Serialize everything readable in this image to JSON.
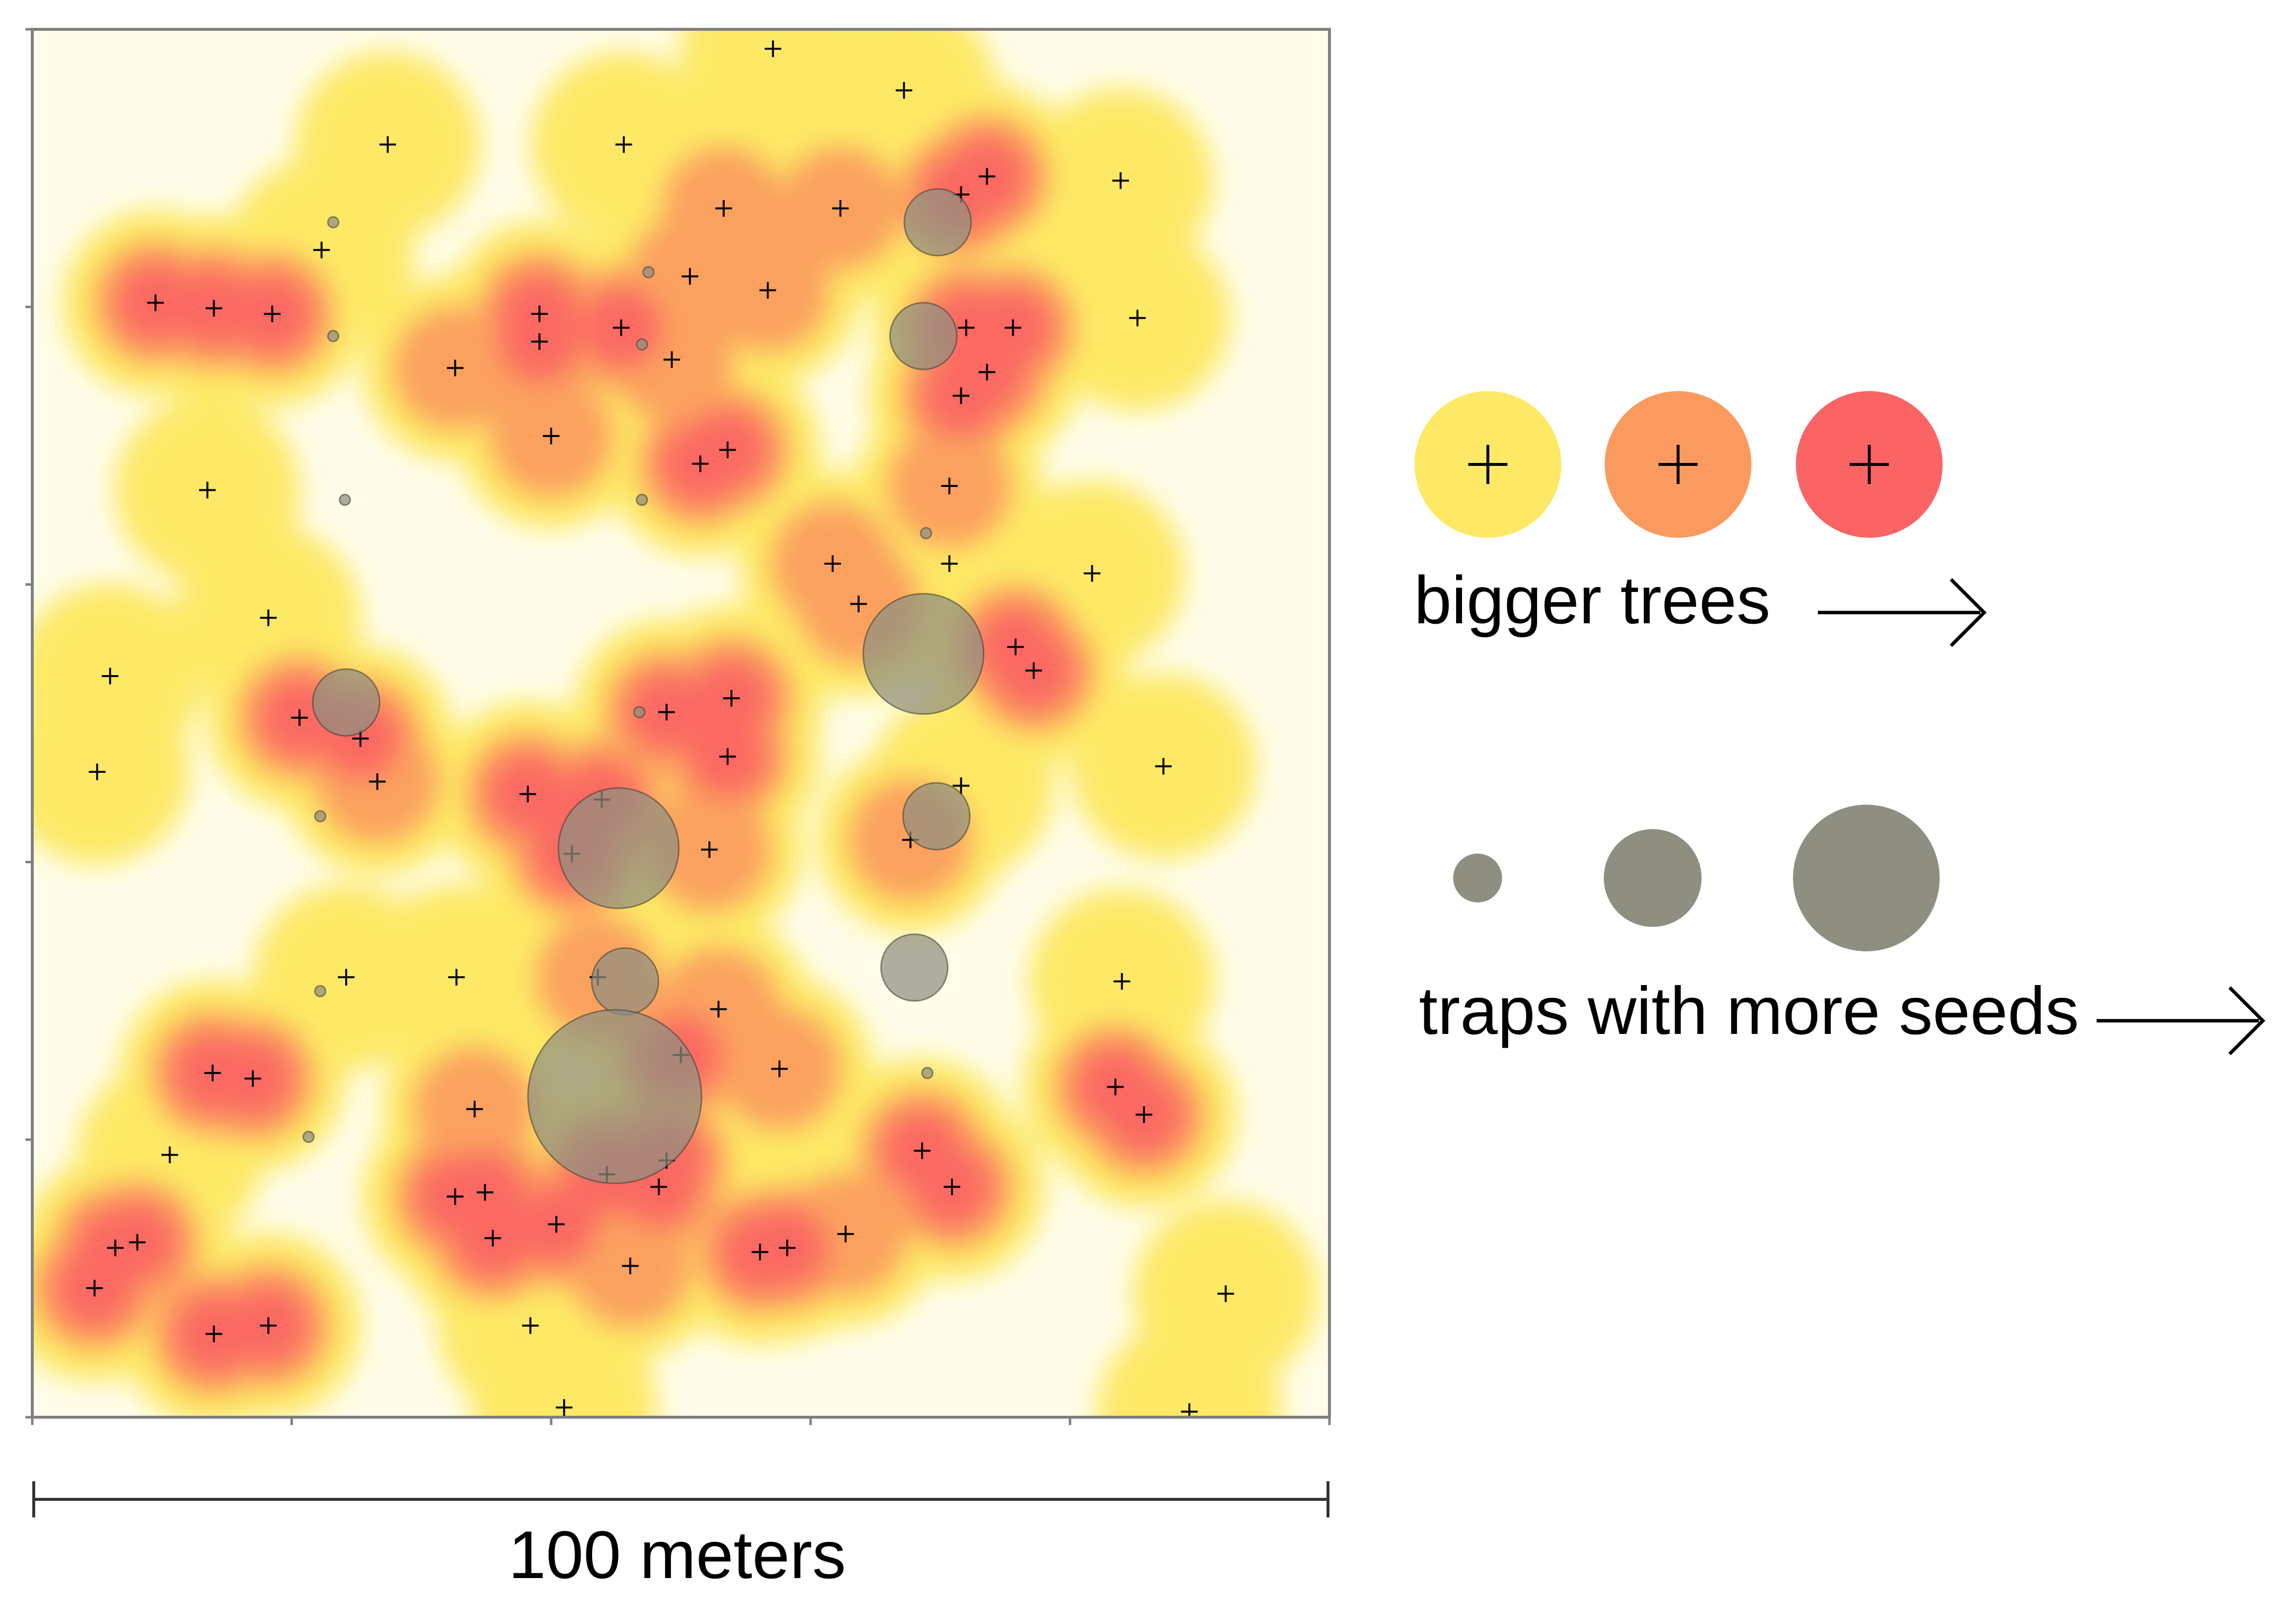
{
  "chart_data": {
    "type": "scatter",
    "title": "",
    "plot_extent_m": [
      0,
      100
    ],
    "scale_bar_label": "100 meters",
    "colors": {
      "tree_small": "#fde965",
      "tree_medium": "#fb9a5f",
      "tree_large": "#fb6464",
      "trap": "#8f8f81",
      "background": "#fffdea",
      "tree_marker": "#000000"
    },
    "trees": {
      "marker": "plus",
      "size_classes": [
        "small",
        "medium",
        "large"
      ],
      "points": [
        {
          "x": 57.1,
          "y": 98.6,
          "size": "small"
        },
        {
          "x": 67.2,
          "y": 95.6,
          "size": "small"
        },
        {
          "x": 27.4,
          "y": 91.7,
          "size": "small"
        },
        {
          "x": 45.6,
          "y": 91.7,
          "size": "small"
        },
        {
          "x": 73.6,
          "y": 89.4,
          "size": "large"
        },
        {
          "x": 71.6,
          "y": 88.1,
          "size": "large"
        },
        {
          "x": 83.9,
          "y": 89.1,
          "size": "small"
        },
        {
          "x": 53.3,
          "y": 87.1,
          "size": "medium"
        },
        {
          "x": 62.3,
          "y": 87.1,
          "size": "medium"
        },
        {
          "x": 22.3,
          "y": 84.1,
          "size": "small"
        },
        {
          "x": 50.7,
          "y": 82.2,
          "size": "medium"
        },
        {
          "x": 56.7,
          "y": 81.2,
          "size": "medium"
        },
        {
          "x": 9.5,
          "y": 80.3,
          "size": "large"
        },
        {
          "x": 14.0,
          "y": 79.9,
          "size": "large"
        },
        {
          "x": 18.5,
          "y": 79.5,
          "size": "large"
        },
        {
          "x": 39.1,
          "y": 79.5,
          "size": "large"
        },
        {
          "x": 45.4,
          "y": 78.5,
          "size": "large"
        },
        {
          "x": 72.0,
          "y": 78.5,
          "size": "large"
        },
        {
          "x": 75.6,
          "y": 78.5,
          "size": "large"
        },
        {
          "x": 85.2,
          "y": 79.2,
          "size": "small"
        },
        {
          "x": 39.1,
          "y": 77.5,
          "size": "large"
        },
        {
          "x": 49.3,
          "y": 76.2,
          "size": "medium"
        },
        {
          "x": 32.6,
          "y": 75.6,
          "size": "medium"
        },
        {
          "x": 73.6,
          "y": 75.3,
          "size": "large"
        },
        {
          "x": 71.6,
          "y": 73.6,
          "size": "large"
        },
        {
          "x": 40.0,
          "y": 70.7,
          "size": "medium"
        },
        {
          "x": 53.6,
          "y": 69.7,
          "size": "large"
        },
        {
          "x": 51.5,
          "y": 68.7,
          "size": "large"
        },
        {
          "x": 70.7,
          "y": 67.1,
          "size": "medium"
        },
        {
          "x": 13.5,
          "y": 66.8,
          "size": "small"
        },
        {
          "x": 70.7,
          "y": 61.5,
          "size": "small"
        },
        {
          "x": 61.7,
          "y": 61.5,
          "size": "medium"
        },
        {
          "x": 81.7,
          "y": 60.8,
          "size": "small"
        },
        {
          "x": 63.7,
          "y": 58.6,
          "size": "medium"
        },
        {
          "x": 18.2,
          "y": 57.6,
          "size": "small"
        },
        {
          "x": 75.8,
          "y": 55.5,
          "size": "large"
        },
        {
          "x": 77.2,
          "y": 53.8,
          "size": "large"
        },
        {
          "x": 6.0,
          "y": 53.4,
          "size": "small"
        },
        {
          "x": 53.9,
          "y": 51.8,
          "size": "large"
        },
        {
          "x": 48.9,
          "y": 50.8,
          "size": "large"
        },
        {
          "x": 20.6,
          "y": 50.4,
          "size": "large"
        },
        {
          "x": 25.3,
          "y": 48.9,
          "size": "large"
        },
        {
          "x": 53.6,
          "y": 47.6,
          "size": "large"
        },
        {
          "x": 5.0,
          "y": 46.5,
          "size": "small"
        },
        {
          "x": 26.6,
          "y": 45.8,
          "size": "medium"
        },
        {
          "x": 87.2,
          "y": 46.9,
          "size": "small"
        },
        {
          "x": 71.6,
          "y": 45.5,
          "size": "small"
        },
        {
          "x": 38.2,
          "y": 44.9,
          "size": "large"
        },
        {
          "x": 43.9,
          "y": 44.5,
          "size": "large"
        },
        {
          "x": 52.2,
          "y": 40.9,
          "size": "medium"
        },
        {
          "x": 41.6,
          "y": 40.6,
          "size": "large"
        },
        {
          "x": 67.7,
          "y": 41.6,
          "size": "medium"
        },
        {
          "x": 24.2,
          "y": 31.7,
          "size": "small"
        },
        {
          "x": 32.7,
          "y": 31.7,
          "size": "small"
        },
        {
          "x": 43.6,
          "y": 31.7,
          "size": "medium"
        },
        {
          "x": 84.0,
          "y": 31.4,
          "size": "small"
        },
        {
          "x": 52.9,
          "y": 29.4,
          "size": "medium"
        },
        {
          "x": 50.0,
          "y": 26.1,
          "size": "large"
        },
        {
          "x": 57.6,
          "y": 25.1,
          "size": "medium"
        },
        {
          "x": 13.9,
          "y": 24.8,
          "size": "large"
        },
        {
          "x": 17.0,
          "y": 24.4,
          "size": "large"
        },
        {
          "x": 83.5,
          "y": 23.8,
          "size": "large"
        },
        {
          "x": 34.1,
          "y": 22.2,
          "size": "medium"
        },
        {
          "x": 85.7,
          "y": 21.8,
          "size": "large"
        },
        {
          "x": 10.6,
          "y": 18.9,
          "size": "small"
        },
        {
          "x": 68.6,
          "y": 19.2,
          "size": "large"
        },
        {
          "x": 48.9,
          "y": 18.5,
          "size": "large"
        },
        {
          "x": 44.3,
          "y": 17.5,
          "size": "large"
        },
        {
          "x": 48.3,
          "y": 16.6,
          "size": "large"
        },
        {
          "x": 70.9,
          "y": 16.6,
          "size": "large"
        },
        {
          "x": 32.6,
          "y": 15.9,
          "size": "large"
        },
        {
          "x": 34.9,
          "y": 16.2,
          "size": "large"
        },
        {
          "x": 40.4,
          "y": 13.9,
          "size": "large"
        },
        {
          "x": 62.7,
          "y": 13.2,
          "size": "medium"
        },
        {
          "x": 35.5,
          "y": 12.9,
          "size": "large"
        },
        {
          "x": 6.4,
          "y": 12.2,
          "size": "large"
        },
        {
          "x": 8.1,
          "y": 12.6,
          "size": "large"
        },
        {
          "x": 56.1,
          "y": 11.9,
          "size": "large"
        },
        {
          "x": 58.2,
          "y": 12.2,
          "size": "large"
        },
        {
          "x": 46.1,
          "y": 10.9,
          "size": "medium"
        },
        {
          "x": 4.8,
          "y": 9.3,
          "size": "large"
        },
        {
          "x": 92.0,
          "y": 8.9,
          "size": "small"
        },
        {
          "x": 18.2,
          "y": 6.6,
          "size": "large"
        },
        {
          "x": 14.0,
          "y": 6.0,
          "size": "large"
        },
        {
          "x": 38.4,
          "y": 6.6,
          "size": "small"
        },
        {
          "x": 41.0,
          "y": 0.7,
          "size": "small"
        },
        {
          "x": 89.2,
          "y": 0.4,
          "size": "small"
        }
      ]
    },
    "traps": {
      "marker": "circle",
      "size_classes": [
        "few seeds",
        "more seeds",
        "most seeds"
      ],
      "points": [
        {
          "x": 23.2,
          "y": 86.1,
          "seeds": 1
        },
        {
          "x": 69.8,
          "y": 86.1,
          "seeds": 40
        },
        {
          "x": 47.5,
          "y": 82.5,
          "seeds": 1
        },
        {
          "x": 23.2,
          "y": 77.9,
          "seeds": 1
        },
        {
          "x": 68.7,
          "y": 77.9,
          "seeds": 40
        },
        {
          "x": 47.0,
          "y": 77.3,
          "seeds": 1
        },
        {
          "x": 24.1,
          "y": 66.1,
          "seeds": 0.5
        },
        {
          "x": 47.0,
          "y": 66.1,
          "seeds": 1
        },
        {
          "x": 68.9,
          "y": 63.7,
          "seeds": 1
        },
        {
          "x": 68.7,
          "y": 55.0,
          "seeds": 130
        },
        {
          "x": 24.2,
          "y": 51.5,
          "seeds": 40
        },
        {
          "x": 46.8,
          "y": 50.8,
          "seeds": 1
        },
        {
          "x": 69.7,
          "y": 43.3,
          "seeds": 40
        },
        {
          "x": 22.2,
          "y": 43.3,
          "seeds": 1
        },
        {
          "x": 45.2,
          "y": 41.0,
          "seeds": 130
        },
        {
          "x": 68.0,
          "y": 32.4,
          "seeds": 40
        },
        {
          "x": 45.7,
          "y": 31.4,
          "seeds": 40
        },
        {
          "x": 22.2,
          "y": 30.7,
          "seeds": 1
        },
        {
          "x": 69.0,
          "y": 24.8,
          "seeds": 1
        },
        {
          "x": 21.3,
          "y": 20.2,
          "seeds": 1
        },
        {
          "x": 44.9,
          "y": 23.1,
          "seeds": 270
        }
      ]
    },
    "legend": {
      "trees_label": "bigger trees",
      "traps_label": "traps with more seeds"
    }
  }
}
